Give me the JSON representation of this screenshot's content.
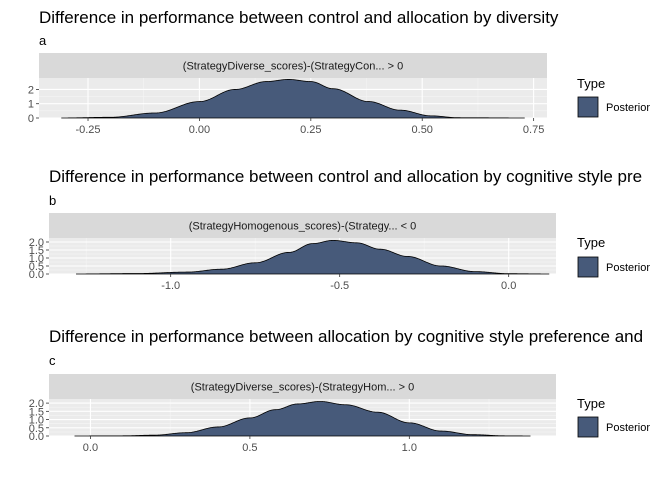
{
  "chart_data": [
    {
      "type": "area",
      "title": "Difference in performance between control and allocation by diversity",
      "subtitle": "a",
      "facet_label": "(StrategyDiverse_scores)-(StrategyCon... > 0",
      "xlim": [
        -0.36,
        0.78
      ],
      "ylim": [
        0,
        2.8
      ],
      "x_ticks": [
        -0.25,
        0.0,
        0.25,
        0.5,
        0.75
      ],
      "x_tick_labels": [
        "-0.25",
        "0.00",
        "0.25",
        "0.50",
        "0.75"
      ],
      "y_ticks": [
        0,
        1,
        2
      ],
      "y_tick_labels": [
        "0",
        "1",
        "2"
      ],
      "series": [
        {
          "name": "Posterior",
          "color": "#475a7a",
          "x": [
            -0.31,
            -0.2,
            -0.1,
            0.0,
            0.08,
            0.15,
            0.2,
            0.25,
            0.3,
            0.38,
            0.45,
            0.52,
            0.58,
            0.73
          ],
          "y": [
            0.0,
            0.05,
            0.35,
            1.15,
            2.0,
            2.55,
            2.7,
            2.55,
            2.05,
            1.15,
            0.55,
            0.15,
            0.02,
            0.0
          ]
        }
      ],
      "legend": {
        "title": "Type",
        "position": "right"
      },
      "grid": true
    },
    {
      "type": "area",
      "title": "Difference in performance between control and allocation by cognitive style pre",
      "subtitle": "b",
      "facet_label": "(StrategyHomogenous_scores)-(Strategy... < 0",
      "xlim": [
        -1.36,
        0.14
      ],
      "ylim": [
        0,
        2.25
      ],
      "x_ticks": [
        -1.0,
        -0.5,
        0.0
      ],
      "x_tick_labels": [
        "-1.0",
        "-0.5",
        "0.0"
      ],
      "y_ticks": [
        0.0,
        0.5,
        1.0,
        1.5,
        2.0
      ],
      "y_tick_labels": [
        "0.0",
        "0.5",
        "1.0",
        "1.5",
        "2.0"
      ],
      "series": [
        {
          "name": "Posterior",
          "color": "#475a7a",
          "x": [
            -1.28,
            -1.1,
            -0.95,
            -0.85,
            -0.75,
            -0.65,
            -0.58,
            -0.52,
            -0.45,
            -0.38,
            -0.3,
            -0.2,
            -0.1,
            0.0,
            0.12
          ],
          "y": [
            0.0,
            0.03,
            0.12,
            0.3,
            0.7,
            1.35,
            1.9,
            2.1,
            1.95,
            1.55,
            1.1,
            0.5,
            0.15,
            0.02,
            0.0
          ]
        }
      ],
      "legend": {
        "title": "Type",
        "position": "right"
      },
      "grid": true
    },
    {
      "type": "area",
      "title": "Difference in performance between allocation by cognitive style preference and",
      "subtitle": "c",
      "facet_label": "(StrategyDiverse_scores)-(StrategyHom... > 0",
      "xlim": [
        -0.13,
        1.46
      ],
      "ylim": [
        0,
        2.25
      ],
      "x_ticks": [
        0.0,
        0.5,
        1.0
      ],
      "x_tick_labels": [
        "0.0",
        "0.5",
        "1.0"
      ],
      "y_ticks": [
        0.0,
        0.5,
        1.0,
        1.5,
        2.0
      ],
      "y_tick_labels": [
        "0.0",
        "0.5",
        "1.0",
        "1.5",
        "2.0"
      ],
      "series": [
        {
          "name": "Posterior",
          "color": "#475a7a",
          "x": [
            -0.05,
            0.1,
            0.2,
            0.3,
            0.4,
            0.5,
            0.58,
            0.65,
            0.72,
            0.8,
            0.9,
            1.0,
            1.1,
            1.2,
            1.3,
            1.38
          ],
          "y": [
            0.0,
            0.01,
            0.05,
            0.2,
            0.55,
            1.1,
            1.6,
            1.95,
            2.1,
            1.9,
            1.45,
            0.8,
            0.3,
            0.08,
            0.01,
            0.0
          ]
        }
      ],
      "legend": {
        "title": "Type",
        "position": "right"
      },
      "grid": true
    }
  ]
}
